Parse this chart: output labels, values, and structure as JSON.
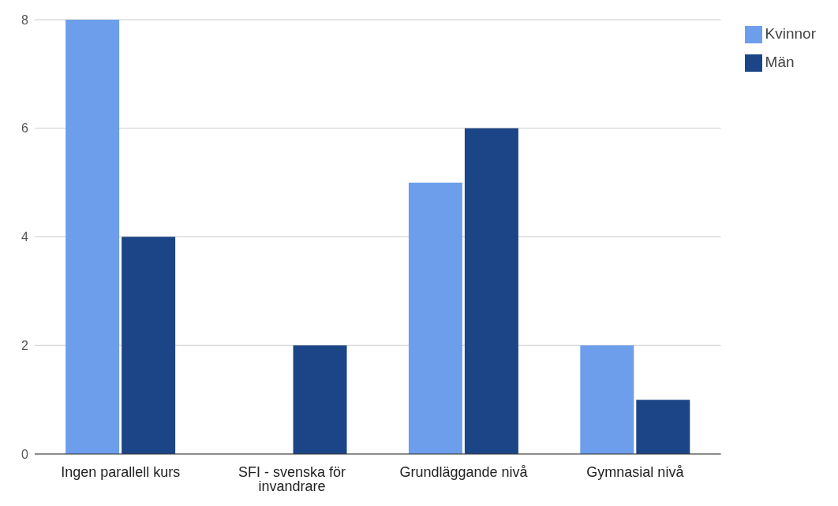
{
  "chart_data": {
    "type": "bar",
    "categories": [
      "Ingen parallell kurs",
      "SFI - svenska för invandrare",
      "Grundläggande nivå",
      "Gymnasial nivå"
    ],
    "series": [
      {
        "name": "Kvinnor",
        "color": "#6d9eeb",
        "values": [
          8,
          0,
          5,
          2
        ]
      },
      {
        "name": "Män",
        "color": "#1c4587",
        "values": [
          4,
          2,
          6,
          1
        ]
      }
    ],
    "ylim": [
      0,
      8
    ],
    "yticks": [
      0,
      2,
      4,
      6,
      8
    ],
    "grid": "y",
    "legend": "top right"
  }
}
